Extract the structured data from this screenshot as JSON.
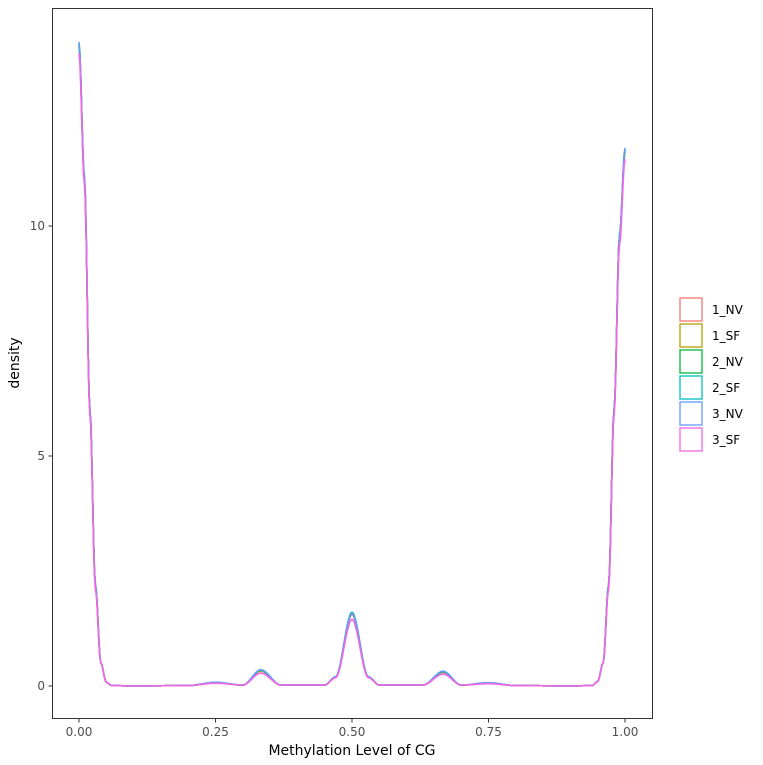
{
  "chart_data": {
    "type": "line",
    "subtype": "density",
    "title": "",
    "xlabel": "Methylation Level of CG",
    "ylabel": "density",
    "xlim": [
      -0.05,
      1.05
    ],
    "ylim": [
      -0.7,
      14.7
    ],
    "x_ticks": [
      0.0,
      0.25,
      0.5,
      0.75,
      1.0
    ],
    "x_tick_labels": [
      "0.00",
      "0.25",
      "0.50",
      "0.75",
      "1.00"
    ],
    "y_ticks": [
      0,
      5,
      10
    ],
    "y_tick_labels": [
      "0",
      "5",
      "10"
    ],
    "grid": false,
    "legend_position": "right",
    "legend_style": "outlined squares",
    "x": [
      0.0,
      0.01,
      0.02,
      0.03,
      0.04,
      0.05,
      0.06,
      0.1,
      0.2,
      0.25,
      0.3,
      0.333,
      0.37,
      0.45,
      0.47,
      0.5,
      0.53,
      0.55,
      0.63,
      0.667,
      0.7,
      0.75,
      0.8,
      0.9,
      0.94,
      0.95,
      0.96,
      0.97,
      0.98,
      0.99,
      1.0
    ],
    "series": [
      {
        "name": "1_NV",
        "color": "#F8766D",
        "values": [
          13.9,
          11.0,
          6.0,
          2.2,
          0.5,
          0.08,
          0.01,
          0.0,
          0.01,
          0.07,
          0.02,
          0.33,
          0.02,
          0.02,
          0.2,
          1.55,
          0.2,
          0.02,
          0.02,
          0.3,
          0.02,
          0.06,
          0.01,
          0.0,
          0.01,
          0.1,
          0.5,
          2.2,
          6.0,
          9.8,
          11.6
        ]
      },
      {
        "name": "1_SF",
        "color": "#B79F00",
        "values": [
          13.9,
          11.0,
          6.0,
          2.2,
          0.5,
          0.08,
          0.01,
          0.0,
          0.01,
          0.07,
          0.02,
          0.33,
          0.02,
          0.02,
          0.2,
          1.57,
          0.2,
          0.02,
          0.02,
          0.3,
          0.02,
          0.06,
          0.01,
          0.0,
          0.01,
          0.1,
          0.5,
          2.2,
          6.0,
          9.8,
          11.6
        ]
      },
      {
        "name": "2_NV",
        "color": "#00BA38",
        "values": [
          13.95,
          11.0,
          6.0,
          2.2,
          0.5,
          0.08,
          0.01,
          0.0,
          0.01,
          0.07,
          0.02,
          0.34,
          0.02,
          0.02,
          0.2,
          1.6,
          0.2,
          0.02,
          0.02,
          0.31,
          0.02,
          0.06,
          0.01,
          0.0,
          0.01,
          0.1,
          0.5,
          2.2,
          6.0,
          9.8,
          11.65
        ]
      },
      {
        "name": "2_SF",
        "color": "#00BFC4",
        "values": [
          13.95,
          11.0,
          6.0,
          2.2,
          0.5,
          0.08,
          0.01,
          0.0,
          0.01,
          0.08,
          0.02,
          0.35,
          0.02,
          0.02,
          0.2,
          1.6,
          0.2,
          0.02,
          0.02,
          0.32,
          0.02,
          0.07,
          0.01,
          0.0,
          0.01,
          0.1,
          0.5,
          2.2,
          6.0,
          9.8,
          11.65
        ]
      },
      {
        "name": "3_NV",
        "color": "#619CFF",
        "values": [
          14.0,
          11.1,
          6.0,
          2.2,
          0.5,
          0.08,
          0.01,
          0.0,
          0.01,
          0.08,
          0.02,
          0.35,
          0.02,
          0.02,
          0.2,
          1.58,
          0.2,
          0.02,
          0.02,
          0.32,
          0.02,
          0.07,
          0.01,
          0.0,
          0.01,
          0.1,
          0.5,
          2.2,
          6.0,
          9.8,
          11.7
        ]
      },
      {
        "name": "3_SF",
        "color": "#F564E3",
        "values": [
          13.75,
          10.9,
          5.9,
          2.1,
          0.5,
          0.08,
          0.01,
          0.0,
          0.01,
          0.06,
          0.02,
          0.28,
          0.02,
          0.02,
          0.18,
          1.45,
          0.18,
          0.02,
          0.02,
          0.26,
          0.02,
          0.05,
          0.01,
          0.0,
          0.01,
          0.1,
          0.5,
          2.1,
          5.9,
          9.6,
          11.45
        ]
      }
    ]
  }
}
